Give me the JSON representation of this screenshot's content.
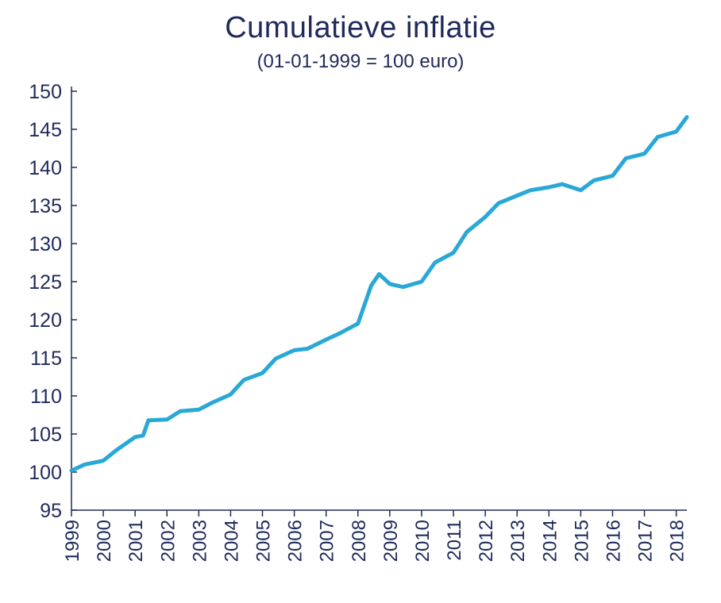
{
  "chart_data": {
    "type": "line",
    "title": "Cumulatieve inflatie",
    "subtitle": "(01-01-1999 = 100 euro)",
    "xlabel": "",
    "ylabel": "",
    "ylim": [
      95,
      150
    ],
    "xlim": [
      "1999-01",
      "2018-05"
    ],
    "grid": false,
    "yticks": [
      "95",
      "100",
      "105",
      "110",
      "115",
      "120",
      "125",
      "130",
      "135",
      "140",
      "145",
      "150"
    ],
    "xticks": [
      "1999",
      "2000",
      "2001",
      "2002",
      "2003",
      "2004",
      "2005",
      "2006",
      "2007",
      "2008",
      "2009",
      "2010",
      "2011",
      "2012",
      "2013",
      "2014",
      "2015",
      "2016",
      "2017",
      "2018"
    ],
    "colors": {
      "line": "#29a8d7",
      "axis": "#1f2a5a",
      "text": "#1f2a5a"
    },
    "series": [
      {
        "x": [
          "1999-01",
          "1999-06",
          "2000-01",
          "2000-06",
          "2001-01",
          "2001-04",
          "2001-06",
          "2002-01",
          "2002-06",
          "2003-01",
          "2003-06",
          "2004-01",
          "2004-06",
          "2005-01",
          "2005-06",
          "2006-01",
          "2006-06",
          "2007-01",
          "2007-06",
          "2008-01",
          "2008-06",
          "2008-09",
          "2009-01",
          "2009-06",
          "2010-01",
          "2010-06",
          "2011-01",
          "2011-06",
          "2012-01",
          "2012-06",
          "2013-01",
          "2013-06",
          "2014-01",
          "2014-06",
          "2015-01",
          "2015-06",
          "2016-01",
          "2016-06",
          "2017-01",
          "2017-06",
          "2018-01",
          "2018-05"
        ],
        "y": [
          100.2,
          101.0,
          101.5,
          102.9,
          104.6,
          104.8,
          106.8,
          106.9,
          108.0,
          108.2,
          109.1,
          110.2,
          112.1,
          113.0,
          114.9,
          116.0,
          116.2,
          117.4,
          118.2,
          119.5,
          124.5,
          126.0,
          124.7,
          124.3,
          125.0,
          127.5,
          128.8,
          131.5,
          133.5,
          135.3,
          136.3,
          137.0,
          137.4,
          137.8,
          137.0,
          138.3,
          138.9,
          141.2,
          141.8,
          144.0,
          144.7,
          146.6
        ]
      }
    ]
  }
}
